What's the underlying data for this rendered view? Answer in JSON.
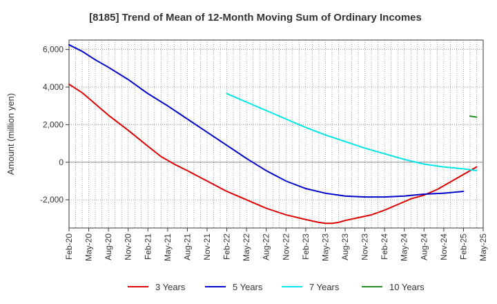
{
  "chart_data": {
    "type": "line",
    "title": "[8185]  Trend of Mean of 12-Month Moving Sum of Ordinary Incomes",
    "xlabel": "",
    "ylabel": "Amount (million yen)",
    "ylim": [
      -3500,
      6500
    ],
    "yticks": [
      6000,
      4000,
      2000,
      0,
      -2000
    ],
    "ytick_labels": [
      "6,000",
      "4,000",
      "2,000",
      "0",
      "-2,000"
    ],
    "x_start_month_index": 0,
    "x_month_count": 63,
    "xtick_labels": [
      "Feb-20",
      "May-20",
      "Aug-20",
      "Nov-20",
      "Feb-21",
      "May-21",
      "Aug-21",
      "Nov-21",
      "Feb-22",
      "May-22",
      "Aug-22",
      "Nov-22",
      "Feb-23",
      "May-23",
      "Aug-23",
      "Nov-23",
      "Feb-24",
      "May-24",
      "Aug-24",
      "Nov-24",
      "Feb-25",
      "May-25"
    ],
    "grid": true,
    "legend_position": "bottom",
    "series": [
      {
        "name": "3 Years",
        "color": "#dd0000",
        "points": [
          [
            0,
            4150
          ],
          [
            2,
            3700
          ],
          [
            4,
            3100
          ],
          [
            6,
            2500
          ],
          [
            9,
            1700
          ],
          [
            12,
            850
          ],
          [
            14,
            300
          ],
          [
            16,
            -100
          ],
          [
            18,
            -450
          ],
          [
            21,
            -1000
          ],
          [
            24,
            -1550
          ],
          [
            27,
            -2000
          ],
          [
            30,
            -2450
          ],
          [
            33,
            -2800
          ],
          [
            36,
            -3050
          ],
          [
            38,
            -3200
          ],
          [
            39,
            -3250
          ],
          [
            40,
            -3250
          ],
          [
            41,
            -3200
          ],
          [
            42,
            -3100
          ],
          [
            44,
            -2950
          ],
          [
            46,
            -2800
          ],
          [
            48,
            -2550
          ],
          [
            50,
            -2250
          ],
          [
            52,
            -1950
          ],
          [
            54,
            -1750
          ],
          [
            56,
            -1450
          ],
          [
            58,
            -1050
          ],
          [
            60,
            -650
          ],
          [
            62,
            -250
          ]
        ]
      },
      {
        "name": "5 Years",
        "color": "#0000cc",
        "points": [
          [
            0,
            6250
          ],
          [
            2,
            5900
          ],
          [
            4,
            5450
          ],
          [
            6,
            5050
          ],
          [
            9,
            4400
          ],
          [
            12,
            3650
          ],
          [
            15,
            3000
          ],
          [
            18,
            2300
          ],
          [
            21,
            1600
          ],
          [
            24,
            900
          ],
          [
            27,
            200
          ],
          [
            30,
            -450
          ],
          [
            33,
            -1000
          ],
          [
            36,
            -1400
          ],
          [
            39,
            -1650
          ],
          [
            42,
            -1800
          ],
          [
            45,
            -1850
          ],
          [
            48,
            -1850
          ],
          [
            51,
            -1800
          ],
          [
            54,
            -1700
          ],
          [
            57,
            -1650
          ],
          [
            60,
            -1550
          ]
        ]
      },
      {
        "name": "7 Years",
        "color": "#00e5e5",
        "points": [
          [
            24,
            3650
          ],
          [
            27,
            3200
          ],
          [
            30,
            2750
          ],
          [
            33,
            2300
          ],
          [
            36,
            1850
          ],
          [
            39,
            1450
          ],
          [
            42,
            1100
          ],
          [
            45,
            750
          ],
          [
            48,
            450
          ],
          [
            51,
            150
          ],
          [
            54,
            -100
          ],
          [
            57,
            -250
          ],
          [
            60,
            -350
          ],
          [
            62,
            -450
          ]
        ]
      },
      {
        "name": "10 Years",
        "color": "#228b22",
        "points": [
          [
            61,
            2450
          ],
          [
            62,
            2400
          ]
        ]
      }
    ]
  }
}
